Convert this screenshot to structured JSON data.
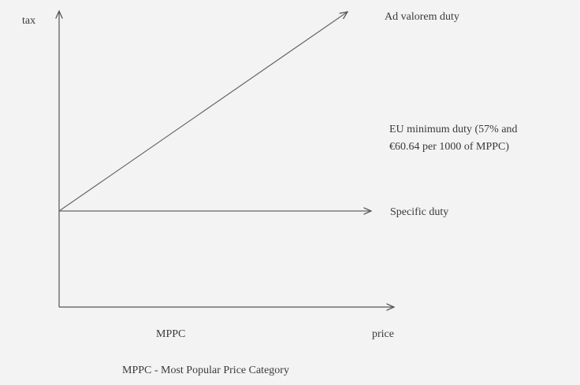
{
  "diagram": {
    "y_axis_label": "tax",
    "x_axis_label": "price",
    "x_marker_label": "MPPC",
    "lines": [
      {
        "label": "Ad valorem duty"
      },
      {
        "label": [
          "EU minimum duty (57% and",
          "€60.64 per 1000 of MPPC)"
        ]
      },
      {
        "label": "Specific duty"
      }
    ],
    "footnote": "MPPC - Most Popular Price Category"
  }
}
